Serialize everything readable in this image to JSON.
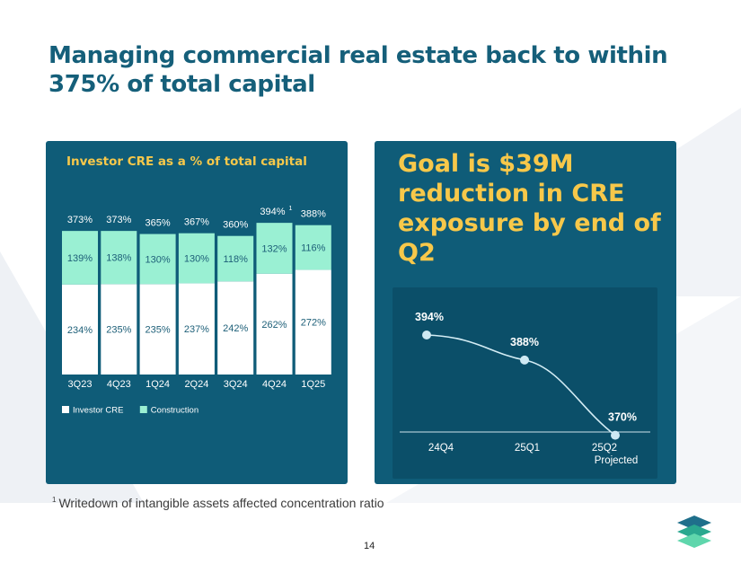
{
  "slide": {
    "title": "Managing commercial real estate back to within 375% of total capital",
    "goal_text": "Goal is $39M reduction in CRE exposure by end of Q2",
    "footnote_marker": "1",
    "footnote": "Writedown of intangible assets affected concentration ratio",
    "page_number": "14"
  },
  "colors": {
    "navy": "#0f5c78",
    "yellow": "#f7c84a",
    "mint": "#9af0d3",
    "white": "#ffffff",
    "title": "#155f7a"
  },
  "chart_data": [
    {
      "type": "bar",
      "stacked": true,
      "title": "Investor CRE as a % of total capital",
      "categories": [
        "3Q23",
        "4Q23",
        "1Q24",
        "2Q24",
        "3Q24",
        "4Q24",
        "1Q25"
      ],
      "series": [
        {
          "name": "Investor CRE",
          "values": [
            234,
            235,
            235,
            237,
            242,
            262,
            272
          ],
          "labels": [
            "234%",
            "235%",
            "235%",
            "237%",
            "242%",
            "262%",
            "272%"
          ],
          "color": "#ffffff"
        },
        {
          "name": "Construction",
          "values": [
            139,
            138,
            130,
            130,
            118,
            132,
            116
          ],
          "labels": [
            "139%",
            "138%",
            "130%",
            "130%",
            "118%",
            "132%",
            "116%"
          ],
          "color": "#9af0d3"
        }
      ],
      "totals": [
        373,
        373,
        365,
        367,
        360,
        394,
        388
      ],
      "total_labels": [
        "373%",
        "373%",
        "365%",
        "367%",
        "360%",
        "394%",
        "388%"
      ],
      "total_footnote_index": 5,
      "total_footnote_marker": "1",
      "legend_position": "bottom-left",
      "ylim": [
        0,
        400
      ]
    },
    {
      "type": "line",
      "categories": [
        "24Q4",
        "25Q1",
        "25Q2"
      ],
      "category_sublabels": [
        "",
        "",
        "Projected"
      ],
      "values": [
        394,
        388,
        370
      ],
      "labels": [
        "394%",
        "388%",
        "370%"
      ],
      "ylim": [
        360,
        400
      ]
    }
  ]
}
